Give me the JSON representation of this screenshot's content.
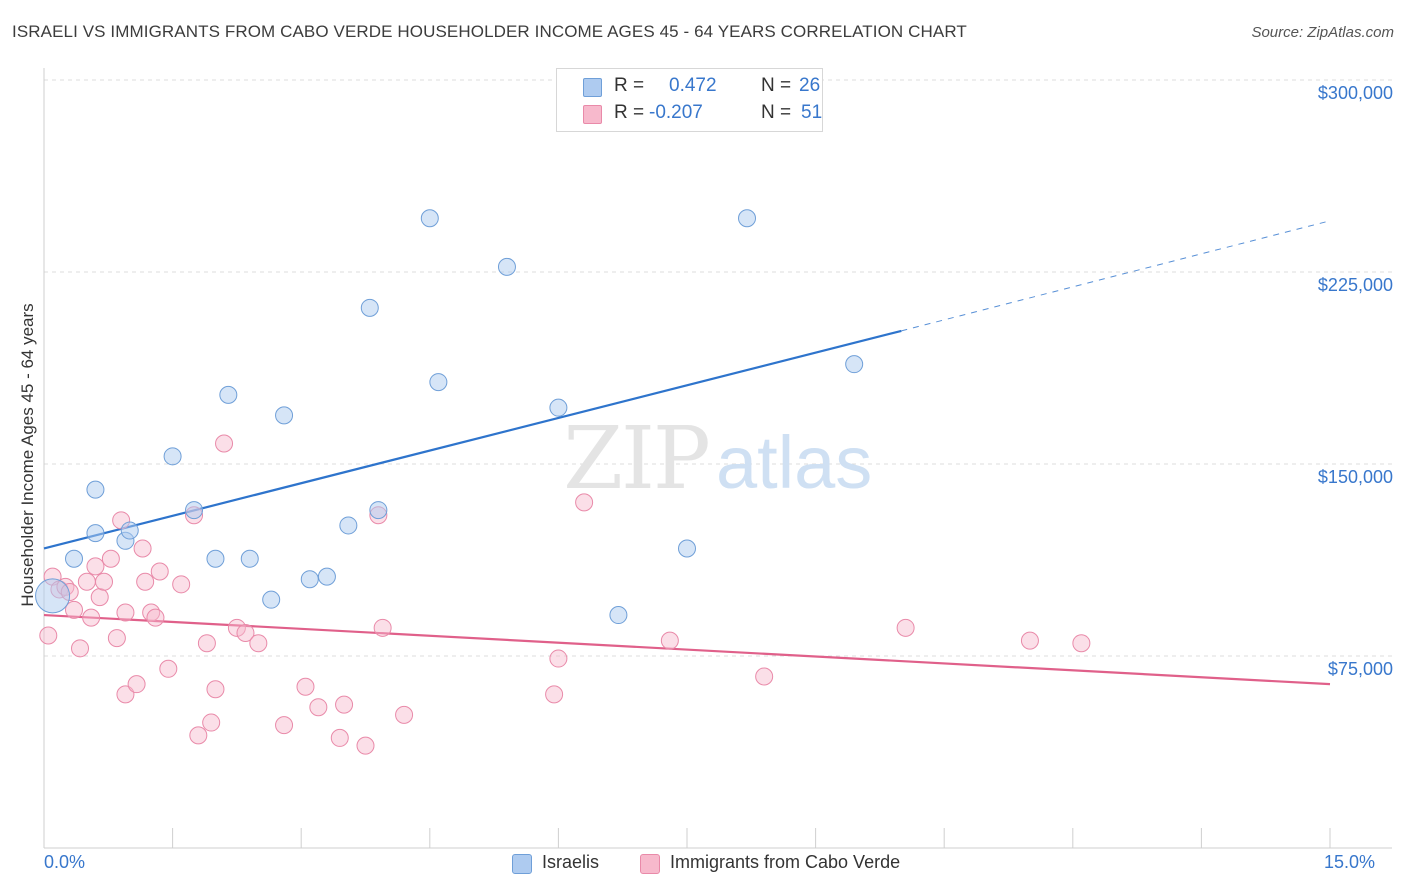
{
  "title": "ISRAELI VS IMMIGRANTS FROM CABO VERDE HOUSEHOLDER INCOME AGES 45 - 64 YEARS CORRELATION CHART",
  "source": "Source: ZipAtlas.com",
  "watermark": {
    "zip": "ZIP",
    "atlas": "atlas"
  },
  "legend": {
    "r_label": "R =",
    "n_label": "N =",
    "rows": [
      {
        "r": "0.472",
        "n": "26",
        "color": "#aecbf0"
      },
      {
        "r": "-0.207",
        "n": "51",
        "color": "#f7b9cc"
      }
    ]
  },
  "bottom_legend": {
    "israelis": "Israelis",
    "cabo_verde": "Immigrants from Cabo Verde"
  },
  "axis": {
    "x_min_label": "0.0%",
    "x_max_label": "15.0%"
  },
  "colors": {
    "israelis": "#aecbf0",
    "israelis_stroke": "#6f9fd8",
    "israelis_line": "#2e74cc",
    "cabo_verde": "#f7b9cc",
    "cabo_verde_stroke": "#e98aa9",
    "cabo_verde_line": "#e0608a",
    "tick_label": "#3877cc"
  },
  "chart_data": {
    "type": "scatter",
    "ylabel": "Householder Income Ages 45 - 64 years",
    "xlim": [
      0,
      15
    ],
    "ylim": [
      0,
      300000
    ],
    "y_ticks": [
      {
        "value": 75000,
        "label": "$75,000"
      },
      {
        "value": 150000,
        "label": "$150,000"
      },
      {
        "value": 225000,
        "label": "$225,000"
      },
      {
        "value": 300000,
        "label": "$300,000"
      }
    ],
    "grid": "horizontal dashed",
    "series": [
      {
        "name": "Israelis",
        "r": 0.472,
        "n": 26,
        "points": [
          [
            0.1,
            98500
          ],
          [
            0.35,
            113000
          ],
          [
            0.6,
            123000
          ],
          [
            0.6,
            140000
          ],
          [
            0.95,
            120000
          ],
          [
            1.0,
            124000
          ],
          [
            1.5,
            153000
          ],
          [
            1.75,
            132000
          ],
          [
            2.0,
            113000
          ],
          [
            2.15,
            177000
          ],
          [
            2.4,
            113000
          ],
          [
            2.65,
            97000
          ],
          [
            2.8,
            169000
          ],
          [
            3.1,
            105000
          ],
          [
            3.3,
            106000
          ],
          [
            3.55,
            126000
          ],
          [
            3.8,
            211000
          ],
          [
            3.9,
            132000
          ],
          [
            4.5,
            246000
          ],
          [
            4.6,
            182000
          ],
          [
            5.4,
            227000
          ],
          [
            6.0,
            172000
          ],
          [
            6.7,
            91000
          ],
          [
            7.5,
            117000
          ],
          [
            8.2,
            246000
          ],
          [
            9.45,
            189000
          ]
        ],
        "trend": {
          "x": [
            0,
            10
          ],
          "y": [
            117000,
            202000
          ],
          "extended_to": [
            15,
            245000
          ]
        }
      },
      {
        "name": "Immigrants from Cabo Verde",
        "r": -0.207,
        "n": 51,
        "points": [
          [
            0.05,
            83000
          ],
          [
            0.1,
            106000
          ],
          [
            0.18,
            101000
          ],
          [
            0.25,
            102000
          ],
          [
            0.3,
            100000
          ],
          [
            0.35,
            93000
          ],
          [
            0.42,
            78000
          ],
          [
            0.5,
            104000
          ],
          [
            0.55,
            90000
          ],
          [
            0.6,
            110000
          ],
          [
            0.65,
            98000
          ],
          [
            0.7,
            104000
          ],
          [
            0.78,
            113000
          ],
          [
            0.85,
            82000
          ],
          [
            0.9,
            128000
          ],
          [
            0.95,
            60000
          ],
          [
            0.95,
            92000
          ],
          [
            1.08,
            64000
          ],
          [
            1.15,
            117000
          ],
          [
            1.18,
            104000
          ],
          [
            1.25,
            92000
          ],
          [
            1.3,
            90000
          ],
          [
            1.35,
            108000
          ],
          [
            1.45,
            70000
          ],
          [
            1.6,
            103000
          ],
          [
            1.75,
            130000
          ],
          [
            1.8,
            44000
          ],
          [
            1.9,
            80000
          ],
          [
            1.95,
            49000
          ],
          [
            2.0,
            62000
          ],
          [
            2.1,
            158000
          ],
          [
            2.25,
            86000
          ],
          [
            2.35,
            84000
          ],
          [
            2.5,
            80000
          ],
          [
            2.8,
            48000
          ],
          [
            3.05,
            63000
          ],
          [
            3.2,
            55000
          ],
          [
            3.45,
            43000
          ],
          [
            3.5,
            56000
          ],
          [
            3.75,
            40000
          ],
          [
            3.9,
            130000
          ],
          [
            3.95,
            86000
          ],
          [
            4.2,
            52000
          ],
          [
            5.95,
            60000
          ],
          [
            6.0,
            74000
          ],
          [
            6.3,
            135000
          ],
          [
            7.3,
            81000
          ],
          [
            8.4,
            67000
          ],
          [
            10.05,
            86000
          ],
          [
            11.5,
            81000
          ],
          [
            12.1,
            80000
          ]
        ],
        "trend": {
          "x": [
            0,
            15
          ],
          "y": [
            91000,
            64000
          ]
        }
      }
    ]
  }
}
